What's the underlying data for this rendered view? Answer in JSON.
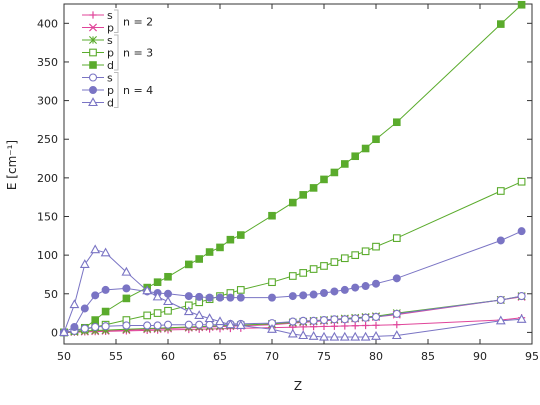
{
  "chart_data": {
    "type": "line",
    "title": "",
    "xlabel": "Z",
    "ylabel": "E [cm⁻¹]",
    "xlim": [
      50,
      95
    ],
    "ylim": [
      -15,
      425
    ],
    "xticks": [
      50,
      55,
      60,
      65,
      70,
      75,
      80,
      85,
      90,
      95
    ],
    "yticks": [
      0,
      50,
      100,
      150,
      200,
      250,
      300,
      350,
      400
    ],
    "grid": false,
    "legend_position": "top-left",
    "legend_groups": [
      {
        "label": "n = 2",
        "series": [
          0,
          1
        ]
      },
      {
        "label": "n = 3",
        "series": [
          2,
          3,
          4
        ]
      },
      {
        "label": "n = 4",
        "series": [
          5,
          6,
          7
        ]
      }
    ],
    "series": [
      {
        "name": "s",
        "color": "#e0459a",
        "marker": "plus",
        "x": [
          50,
          51,
          52,
          53,
          54,
          56,
          58,
          59,
          60,
          62,
          63,
          64,
          65,
          66,
          67,
          70,
          72,
          73,
          74,
          75,
          76,
          77,
          78,
          79,
          80,
          82,
          92,
          94
        ],
        "y": [
          0,
          0.3,
          0.6,
          1,
          1.3,
          2,
          2.6,
          2.9,
          3.2,
          3.8,
          4.1,
          4.4,
          4.7,
          5,
          5.3,
          6.2,
          6.8,
          7.1,
          7.4,
          7.7,
          8,
          8.3,
          8.6,
          8.9,
          9.2,
          10,
          16,
          19
        ]
      },
      {
        "name": "p",
        "color": "#e0459a",
        "marker": "x",
        "x": [
          50,
          51,
          52,
          53,
          54,
          56,
          58,
          59,
          60,
          62,
          63,
          64,
          65,
          66,
          67,
          70,
          72,
          73,
          74,
          75,
          76,
          77,
          78,
          79,
          80,
          82,
          92,
          94
        ],
        "y": [
          0,
          0.5,
          1,
          1.5,
          2,
          3,
          4,
          4.5,
          5,
          6,
          6.5,
          7,
          7.5,
          8,
          8.5,
          10,
          12,
          13,
          14,
          15,
          16,
          17,
          18,
          19,
          20,
          23,
          42,
          46
        ]
      },
      {
        "name": "s",
        "color": "#5aab2c",
        "marker": "star",
        "x": [
          50,
          51,
          52,
          53,
          54,
          56,
          58,
          59,
          60,
          62,
          63,
          64,
          65,
          66,
          67,
          70,
          72,
          73,
          74,
          75,
          76,
          77,
          78,
          79,
          80,
          82,
          92,
          94
        ],
        "y": [
          0,
          1,
          2,
          2.5,
          3,
          4,
          5,
          5.5,
          6,
          7,
          7.5,
          8,
          8.5,
          9,
          9.5,
          11,
          13,
          14,
          15,
          16,
          17,
          18,
          19,
          20,
          21,
          25,
          42,
          47
        ]
      },
      {
        "name": "p",
        "color": "#5aab2c",
        "marker": "square-open",
        "x": [
          50,
          51,
          52,
          53,
          54,
          56,
          58,
          59,
          60,
          62,
          63,
          64,
          65,
          66,
          67,
          70,
          72,
          73,
          74,
          75,
          76,
          77,
          78,
          79,
          80,
          82,
          92,
          94
        ],
        "y": [
          0,
          2,
          4,
          7,
          10,
          16,
          22,
          25,
          28,
          35,
          39,
          43,
          47,
          51,
          55,
          65,
          73,
          77,
          82,
          86,
          91,
          96,
          100,
          105,
          111,
          122,
          183,
          195
        ]
      },
      {
        "name": "d",
        "color": "#5aab2c",
        "marker": "square-filled",
        "x": [
          50,
          51,
          52,
          53,
          54,
          56,
          58,
          59,
          60,
          62,
          63,
          64,
          65,
          66,
          67,
          70,
          72,
          73,
          74,
          75,
          76,
          77,
          78,
          79,
          80,
          82,
          92,
          94
        ],
        "y": [
          0,
          2,
          6,
          16,
          27,
          44,
          58,
          65,
          72,
          88,
          95,
          104,
          110,
          120,
          126,
          151,
          168,
          178,
          187,
          198,
          207,
          218,
          228,
          238,
          250,
          272,
          399,
          424
        ]
      },
      {
        "name": "s",
        "color": "#7a74c4",
        "marker": "circle-open",
        "x": [
          50,
          51,
          52,
          53,
          54,
          56,
          58,
          59,
          60,
          62,
          63,
          64,
          65,
          66,
          67,
          70,
          72,
          73,
          74,
          75,
          76,
          77,
          78,
          79,
          80,
          82,
          92,
          94
        ],
        "y": [
          0,
          2,
          5,
          7,
          8,
          9,
          9,
          9,
          10,
          10,
          10,
          10,
          10,
          11,
          11,
          12,
          14,
          15,
          15,
          16,
          17,
          17,
          18,
          19,
          20,
          24,
          42,
          47
        ]
      },
      {
        "name": "p",
        "color": "#7a74c4",
        "marker": "circle-filled",
        "x": [
          50,
          51,
          52,
          53,
          54,
          56,
          58,
          59,
          60,
          62,
          63,
          64,
          65,
          66,
          67,
          70,
          72,
          73,
          74,
          75,
          76,
          77,
          78,
          79,
          80,
          82,
          92,
          94
        ],
        "y": [
          0,
          7,
          31,
          48,
          55,
          57,
          53,
          51,
          50,
          47,
          46,
          45,
          45,
          45,
          45,
          45,
          47,
          48,
          49,
          51,
          53,
          55,
          58,
          60,
          63,
          70,
          119,
          131
        ]
      },
      {
        "name": "d",
        "color": "#7a74c4",
        "marker": "triangle-open",
        "x": [
          50,
          51,
          52,
          53,
          54,
          56,
          58,
          59,
          60,
          62,
          63,
          64,
          65,
          66,
          67,
          70,
          72,
          73,
          74,
          75,
          76,
          77,
          78,
          79,
          80,
          82,
          92,
          94
        ],
        "y": [
          0,
          36,
          88,
          107,
          103,
          78,
          54,
          46,
          40,
          27,
          22,
          18,
          14,
          10,
          9,
          4,
          -2,
          -4,
          -5,
          -6,
          -6,
          -6,
          -6,
          -6,
          -5,
          -4,
          15,
          17
        ]
      }
    ]
  }
}
